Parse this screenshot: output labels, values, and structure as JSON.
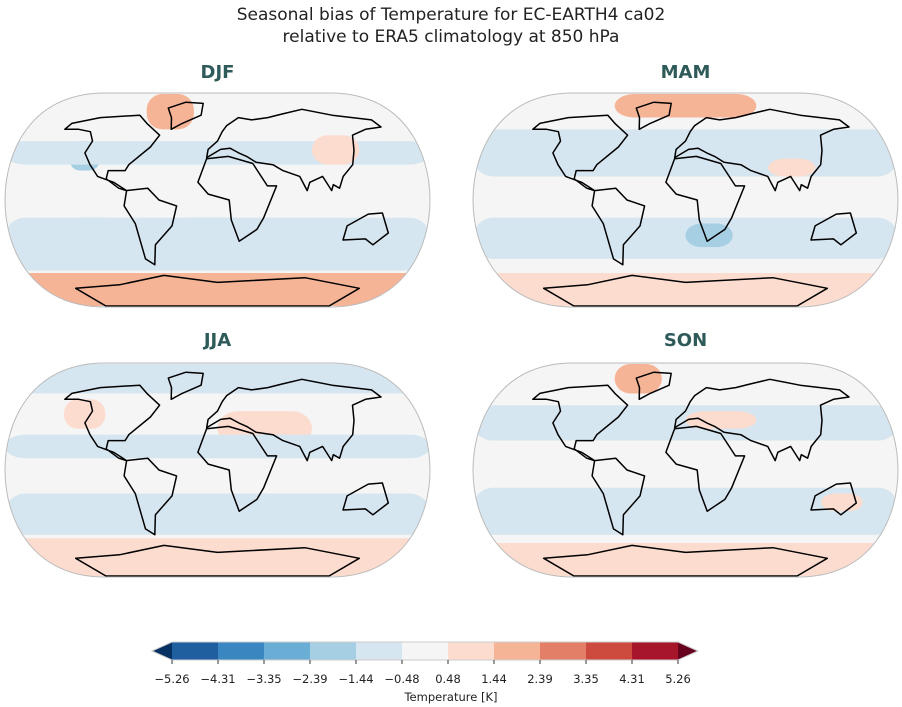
{
  "figure": {
    "title_line1": "Seasonal bias of Temperature for EC-EARTH4 ca02",
    "title_line2": "relative to ERA5 climatology at 850 hPa"
  },
  "panels": [
    {
      "label": "DJF",
      "regions": [
        {
          "lat": [
            60,
            90
          ],
          "lon": [
            -60,
            -20
          ],
          "level": 7
        },
        {
          "lat": [
            25,
            50
          ],
          "lon": [
            -125,
            -100
          ],
          "level": 3
        },
        {
          "lat": [
            30,
            50
          ],
          "lon": [
            -180,
            180
          ],
          "level": 4
        },
        {
          "lat": [
            -40,
            -15
          ],
          "lon": [
            -40,
            30
          ],
          "level": 3
        },
        {
          "lat": [
            -45,
            -15
          ],
          "lon": [
            -130,
            -80
          ],
          "level": 3
        },
        {
          "lat": [
            -60,
            -15
          ],
          "lon": [
            -180,
            180
          ],
          "level": 4
        },
        {
          "lat": [
            30,
            55
          ],
          "lon": [
            80,
            120
          ],
          "level": 6
        },
        {
          "lat": [
            -90,
            -62
          ],
          "lon": [
            -180,
            180
          ],
          "level": 7
        }
      ]
    },
    {
      "label": "MAM",
      "regions": [
        {
          "lat": [
            70,
            90
          ],
          "lon": [
            -60,
            60
          ],
          "level": 7
        },
        {
          "lat": [
            20,
            60
          ],
          "lon": [
            -180,
            180
          ],
          "level": 4
        },
        {
          "lat": [
            20,
            35
          ],
          "lon": [
            70,
            110
          ],
          "level": 6
        },
        {
          "lat": [
            -50,
            -15
          ],
          "lon": [
            -180,
            180
          ],
          "level": 4
        },
        {
          "lat": [
            -40,
            -20
          ],
          "lon": [
            0,
            40
          ],
          "level": 3
        },
        {
          "lat": [
            -90,
            -62
          ],
          "lon": [
            -180,
            180
          ],
          "level": 6
        }
      ]
    },
    {
      "label": "JJA",
      "regions": [
        {
          "lat": [
            65,
            90
          ],
          "lon": [
            -180,
            180
          ],
          "level": 4
        },
        {
          "lat": [
            35,
            60
          ],
          "lon": [
            -130,
            -95
          ],
          "level": 6
        },
        {
          "lat": [
            20,
            50
          ],
          "lon": [
            0,
            80
          ],
          "level": 6
        },
        {
          "lat": [
            10,
            30
          ],
          "lon": [
            -180,
            180
          ],
          "level": 4
        },
        {
          "lat": [
            -55,
            -20
          ],
          "lon": [
            -180,
            180
          ],
          "level": 4
        },
        {
          "lat": [
            -90,
            -58
          ],
          "lon": [
            -180,
            180
          ],
          "level": 6
        }
      ]
    },
    {
      "label": "SON",
      "regions": [
        {
          "lat": [
            65,
            90
          ],
          "lon": [
            -60,
            -20
          ],
          "level": 7
        },
        {
          "lat": [
            25,
            55
          ],
          "lon": [
            -180,
            180
          ],
          "level": 4
        },
        {
          "lat": [
            35,
            50
          ],
          "lon": [
            0,
            60
          ],
          "level": 6
        },
        {
          "lat": [
            -35,
            -20
          ],
          "lon": [
            -40,
            -20
          ],
          "level": 3
        },
        {
          "lat": [
            -55,
            -15
          ],
          "lon": [
            -180,
            180
          ],
          "level": 4
        },
        {
          "lat": [
            -35,
            -20
          ],
          "lon": [
            115,
            150
          ],
          "level": 6
        },
        {
          "lat": [
            -90,
            -62
          ],
          "lon": [
            -180,
            180
          ],
          "level": 6
        }
      ]
    }
  ],
  "colorbar": {
    "label": "Temperature [K]",
    "ticks": [
      "−5.26",
      "−4.31",
      "−3.35",
      "−2.39",
      "−1.44",
      "−0.48",
      "0.48",
      "1.44",
      "2.39",
      "3.35",
      "4.31",
      "5.26"
    ],
    "under_color": "#053061",
    "over_color": "#67001f",
    "colors": [
      "#1f5fa0",
      "#3a86c0",
      "#6aaed6",
      "#a6cfe4",
      "#d6e6f0",
      "#f5f5f5",
      "#fcdccf",
      "#f6b497",
      "#e27f66",
      "#cc4a3e",
      "#a7152a"
    ]
  }
}
